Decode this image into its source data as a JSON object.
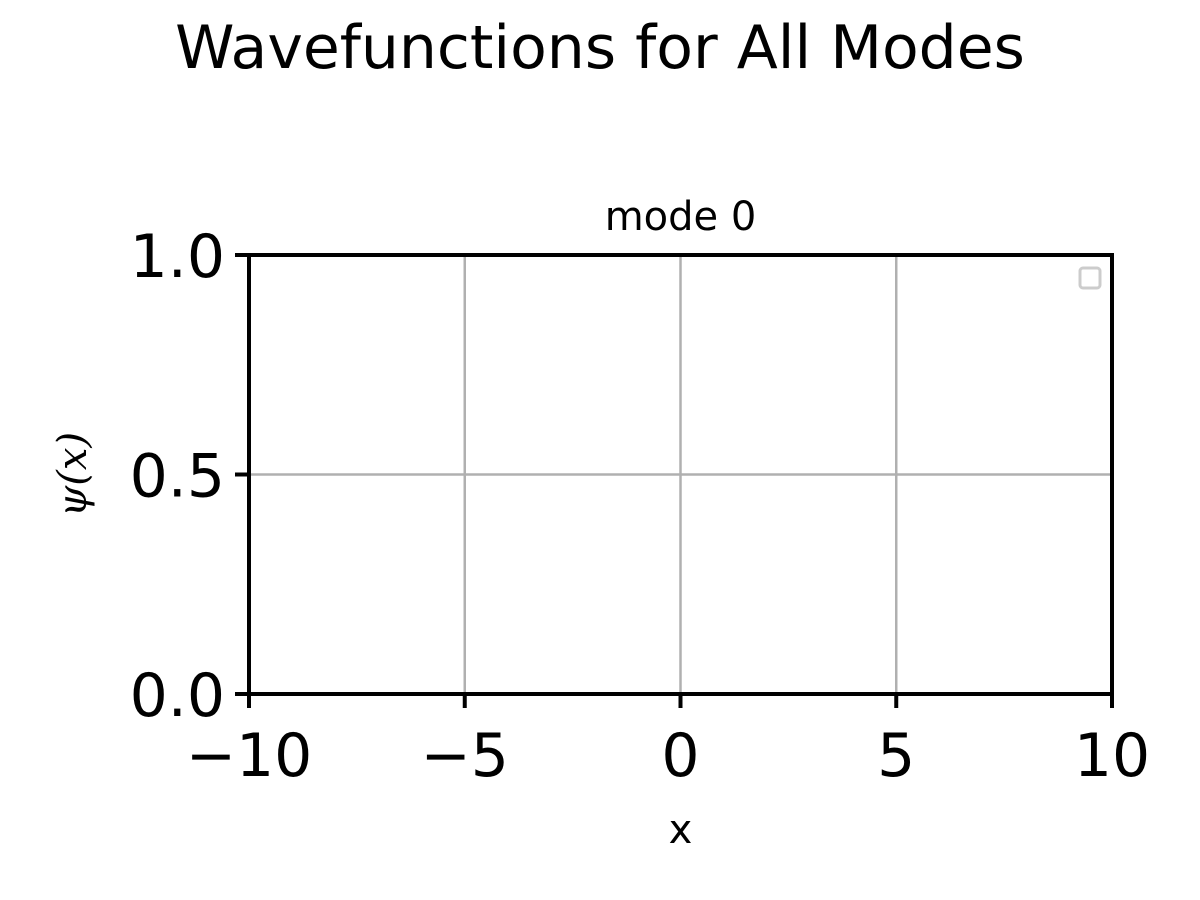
{
  "figure": {
    "suptitle": "Wavefunctions for All Modes"
  },
  "chart_data": {
    "type": "line",
    "title": "mode 0",
    "xlabel": "x",
    "ylabel": "ψ(x)",
    "xlim": [
      -10,
      10
    ],
    "ylim": [
      0.0,
      1.0
    ],
    "xticks": [
      -10,
      -5,
      0,
      5,
      10
    ],
    "xtick_labels": [
      "−10",
      "−5",
      "0",
      "5",
      "10"
    ],
    "yticks": [
      0.0,
      0.5,
      1.0
    ],
    "ytick_labels": [
      "0.0",
      "0.5",
      "1.0"
    ],
    "grid": true,
    "legend": {
      "position": "upper-right",
      "entries": []
    },
    "series": [],
    "colors": {
      "grid": "#b0b0b0",
      "spine": "#000000",
      "legend_border": "#cccccc"
    }
  }
}
